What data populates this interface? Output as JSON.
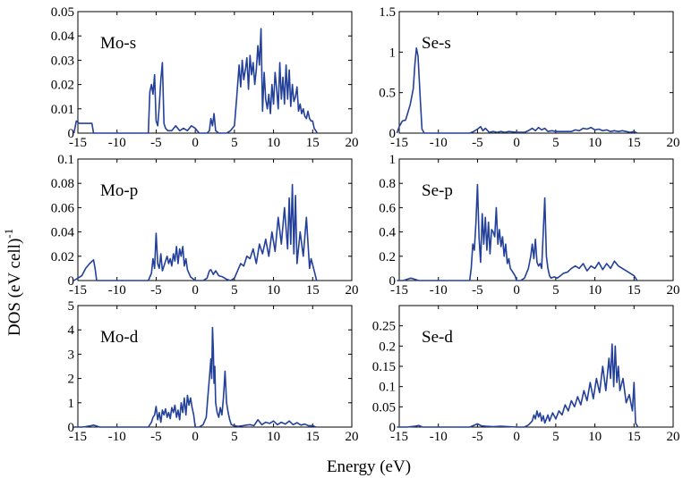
{
  "figure": {
    "ylabel": "DOS (eV cell)",
    "ylabel_sup": "-1",
    "xlabel": "Energy (eV)"
  },
  "chart_data": [
    {
      "type": "line",
      "label": "Mo-s",
      "xlim": [
        -15,
        20
      ],
      "ylim": [
        0,
        0.05
      ],
      "xticks": [
        "-15",
        "-10",
        "-5",
        "0",
        "5",
        "10",
        "15",
        "20"
      ],
      "yticks": [
        "0",
        "0.01",
        "0.02",
        "0.03",
        "0.04",
        "0.05"
      ],
      "ytick_values": [
        0,
        0.01,
        0.02,
        0.03,
        0.04,
        0.05
      ],
      "line_color": "#23409a",
      "x": [
        -15.5,
        -15.2,
        -14.8,
        -14.0,
        -13.2,
        -13.0,
        -12.8,
        -6.0,
        -5.8,
        -5.6,
        -5.4,
        -5.2,
        -5.0,
        -4.8,
        -4.6,
        -4.4,
        -4.2,
        -4.0,
        -3.8,
        -3.5,
        -3.0,
        -2.5,
        -2.0,
        -1.5,
        -1.0,
        -0.5,
        0.0,
        0.5,
        1.0,
        1.5,
        1.8,
        2.0,
        2.2,
        2.4,
        2.6,
        3.0,
        3.5,
        4.0,
        4.5,
        5.0,
        5.3,
        5.6,
        5.8,
        6.0,
        6.2,
        6.4,
        6.6,
        6.8,
        7.0,
        7.2,
        7.4,
        7.6,
        7.8,
        8.0,
        8.2,
        8.4,
        8.6,
        8.8,
        9.0,
        9.2,
        9.4,
        9.6,
        9.8,
        10.0,
        10.2,
        10.4,
        10.6,
        10.8,
        11.0,
        11.2,
        11.4,
        11.6,
        11.8,
        12.0,
        12.2,
        12.4,
        12.6,
        12.8,
        13.0,
        13.2,
        13.4,
        13.6,
        13.8,
        14.0,
        14.2,
        14.4,
        14.6,
        14.8,
        15.0,
        15.2,
        15.4,
        15.6
      ],
      "y": [
        0.0,
        0.005,
        0.004,
        0.004,
        0.004,
        0.0,
        0.0,
        0.0,
        0.017,
        0.02,
        0.016,
        0.024,
        0.005,
        0.003,
        0.011,
        0.022,
        0.029,
        0.004,
        0.002,
        0.001,
        0.001,
        0.003,
        0.001,
        0.002,
        0.001,
        0.003,
        0.002,
        0.0,
        0.0,
        0.0,
        0.001,
        0.006,
        0.003,
        0.008,
        0.001,
        0.0,
        0.0,
        0.0,
        0.001,
        0.003,
        0.015,
        0.028,
        0.019,
        0.03,
        0.022,
        0.026,
        0.031,
        0.018,
        0.032,
        0.024,
        0.029,
        0.02,
        0.026,
        0.036,
        0.028,
        0.043,
        0.009,
        0.025,
        0.014,
        0.01,
        0.016,
        0.008,
        0.02,
        0.012,
        0.025,
        0.018,
        0.01,
        0.029,
        0.014,
        0.023,
        0.012,
        0.028,
        0.014,
        0.026,
        0.011,
        0.02,
        0.013,
        0.015,
        0.019,
        0.009,
        0.012,
        0.008,
        0.01,
        0.007,
        0.006,
        0.009,
        0.006,
        0.005,
        0.005,
        0.002,
        0.001,
        0.0
      ]
    },
    {
      "type": "line",
      "label": "Se-s",
      "xlim": [
        -15,
        20
      ],
      "ylim": [
        0,
        1.5
      ],
      "xticks": [
        "-15",
        "-10",
        "-5",
        "0",
        "5",
        "10",
        "15",
        "20"
      ],
      "yticks": [
        "0",
        "0.5",
        "1",
        "1.5"
      ],
      "ytick_values": [
        0,
        0.5,
        1,
        1.5
      ],
      "line_color": "#23409a",
      "x": [
        -15.3,
        -15.0,
        -14.6,
        -14.2,
        -14.0,
        -13.6,
        -13.2,
        -13.0,
        -12.8,
        -12.6,
        -12.3,
        -12.1,
        -11.8,
        -6.0,
        -5.5,
        -5.0,
        -4.6,
        -4.3,
        -4.0,
        -3.5,
        -3.0,
        -2.5,
        -2.0,
        -1.5,
        -1.0,
        0.0,
        1.0,
        1.5,
        2.0,
        2.4,
        2.8,
        3.2,
        3.6,
        4.0,
        4.5,
        5.0,
        6.0,
        7.0,
        7.5,
        8.0,
        8.5,
        9.0,
        9.5,
        10.0,
        10.5,
        11.0,
        11.5,
        12.0,
        12.5,
        13.0,
        13.5,
        14.0,
        14.5,
        15.0,
        15.4
      ],
      "y": [
        0.0,
        0.08,
        0.15,
        0.16,
        0.22,
        0.35,
        0.55,
        0.85,
        1.05,
        0.95,
        0.4,
        0.05,
        0.0,
        0.0,
        0.02,
        0.05,
        0.08,
        0.03,
        0.06,
        0.01,
        0.02,
        0.01,
        0.02,
        0.01,
        0.02,
        0.01,
        0.01,
        0.03,
        0.06,
        0.03,
        0.07,
        0.04,
        0.06,
        0.02,
        0.03,
        0.02,
        0.02,
        0.02,
        0.04,
        0.03,
        0.06,
        0.05,
        0.07,
        0.04,
        0.05,
        0.03,
        0.04,
        0.02,
        0.03,
        0.02,
        0.03,
        0.02,
        0.01,
        0.02,
        0.0
      ]
    },
    {
      "type": "line",
      "label": "Mo-p",
      "xlim": [
        -15,
        20
      ],
      "ylim": [
        0,
        0.1
      ],
      "xticks": [
        "-15",
        "-10",
        "-5",
        "0",
        "5",
        "10",
        "15",
        "20"
      ],
      "yticks": [
        "0",
        "0.02",
        "0.04",
        "0.06",
        "0.08",
        "0.1"
      ],
      "ytick_values": [
        0,
        0.02,
        0.04,
        0.06,
        0.08,
        0.1
      ],
      "line_color": "#23409a",
      "x": [
        -15.5,
        -15.0,
        -14.5,
        -14.0,
        -13.5,
        -13.0,
        -12.8,
        -12.6,
        -6.0,
        -5.6,
        -5.4,
        -5.2,
        -5.0,
        -4.8,
        -4.6,
        -4.4,
        -4.2,
        -4.0,
        -3.8,
        -3.6,
        -3.4,
        -3.2,
        -3.0,
        -2.8,
        -2.6,
        -2.4,
        -2.2,
        -2.0,
        -1.8,
        -1.6,
        -1.4,
        -1.2,
        -1.0,
        -0.8,
        -0.6,
        -0.4,
        -0.2,
        0.0,
        0.5,
        1.0,
        1.5,
        1.8,
        2.0,
        2.3,
        2.6,
        3.0,
        3.5,
        4.0,
        4.5,
        5.0,
        5.4,
        5.8,
        6.2,
        6.6,
        7.0,
        7.4,
        7.8,
        8.2,
        8.6,
        9.0,
        9.4,
        9.8,
        10.2,
        10.6,
        11.0,
        11.4,
        11.8,
        12.0,
        12.2,
        12.4,
        12.6,
        12.8,
        13.0,
        13.4,
        13.8,
        14.2,
        14.6,
        14.8,
        15.0,
        15.2,
        15.5
      ],
      "y": [
        0.0,
        0.002,
        0.004,
        0.01,
        0.014,
        0.017,
        0.01,
        0.0,
        0.0,
        0.006,
        0.018,
        0.01,
        0.039,
        0.014,
        0.01,
        0.022,
        0.008,
        0.012,
        0.016,
        0.02,
        0.014,
        0.018,
        0.012,
        0.022,
        0.016,
        0.028,
        0.014,
        0.026,
        0.02,
        0.028,
        0.012,
        0.018,
        0.009,
        0.006,
        0.003,
        0.002,
        0.001,
        0.0,
        0.0,
        0.0,
        0.002,
        0.008,
        0.009,
        0.005,
        0.008,
        0.004,
        0.003,
        0.001,
        0.0,
        0.002,
        0.008,
        0.014,
        0.012,
        0.02,
        0.018,
        0.026,
        0.014,
        0.03,
        0.022,
        0.034,
        0.02,
        0.04,
        0.024,
        0.052,
        0.03,
        0.06,
        0.026,
        0.068,
        0.03,
        0.079,
        0.022,
        0.07,
        0.014,
        0.04,
        0.02,
        0.052,
        0.01,
        0.018,
        0.013,
        0.008,
        0.0
      ]
    },
    {
      "type": "line",
      "label": "Se-p",
      "xlim": [
        -15,
        20
      ],
      "ylim": [
        0,
        1
      ],
      "xticks": [
        "-15",
        "-10",
        "-5",
        "0",
        "5",
        "10",
        "15",
        "20"
      ],
      "yticks": [
        "0",
        "0.2",
        "0.4",
        "0.6",
        "0.8",
        "1"
      ],
      "ytick_values": [
        0,
        0.2,
        0.4,
        0.6,
        0.8,
        1
      ],
      "line_color": "#23409a",
      "x": [
        -15.3,
        -14.5,
        -14.0,
        -13.5,
        -13.0,
        -12.5,
        -6.0,
        -5.8,
        -5.6,
        -5.4,
        -5.2,
        -5.0,
        -4.8,
        -4.6,
        -4.4,
        -4.2,
        -4.0,
        -3.8,
        -3.6,
        -3.4,
        -3.2,
        -3.0,
        -2.8,
        -2.6,
        -2.4,
        -2.2,
        -2.0,
        -1.8,
        -1.6,
        -1.4,
        -1.2,
        -1.0,
        -0.8,
        -0.6,
        -0.4,
        -0.2,
        0.0,
        0.5,
        1.0,
        1.5,
        1.8,
        2.0,
        2.2,
        2.4,
        2.6,
        2.8,
        3.0,
        3.2,
        3.4,
        3.6,
        3.8,
        4.0,
        4.2,
        4.4,
        4.8,
        5.2,
        5.6,
        6.0,
        6.5,
        7.0,
        7.5,
        8.0,
        8.5,
        9.0,
        9.5,
        10.0,
        10.5,
        11.0,
        11.5,
        12.0,
        12.5,
        13.0,
        13.5,
        14.0,
        14.5,
        15.0,
        15.4
      ],
      "y": [
        0.0,
        0.0,
        0.01,
        0.02,
        0.01,
        0.0,
        0.0,
        0.1,
        0.3,
        0.25,
        0.48,
        0.79,
        0.35,
        0.15,
        0.55,
        0.3,
        0.52,
        0.25,
        0.48,
        0.22,
        0.42,
        0.4,
        0.36,
        0.6,
        0.3,
        0.42,
        0.28,
        0.36,
        0.2,
        0.3,
        0.14,
        0.18,
        0.1,
        0.08,
        0.06,
        0.04,
        0.0,
        0.0,
        0.02,
        0.1,
        0.2,
        0.3,
        0.18,
        0.34,
        0.15,
        0.12,
        0.14,
        0.1,
        0.4,
        0.68,
        0.2,
        0.1,
        0.04,
        0.02,
        0.03,
        0.02,
        0.04,
        0.06,
        0.07,
        0.1,
        0.12,
        0.1,
        0.14,
        0.08,
        0.12,
        0.1,
        0.15,
        0.09,
        0.14,
        0.1,
        0.16,
        0.12,
        0.1,
        0.08,
        0.06,
        0.04,
        0.0
      ]
    },
    {
      "type": "line",
      "label": "Mo-d",
      "xlim": [
        -15,
        20
      ],
      "ylim": [
        0,
        5
      ],
      "xticks": [
        "-15",
        "-10",
        "-5",
        "0",
        "5",
        "10",
        "15",
        "20"
      ],
      "yticks": [
        "0",
        "1",
        "2",
        "3",
        "4",
        "5"
      ],
      "ytick_values": [
        0,
        1,
        2,
        3,
        4,
        5
      ],
      "line_color": "#23409a",
      "x": [
        -15.5,
        -14.5,
        -14.0,
        -13.4,
        -13.0,
        -12.6,
        -12.2,
        -6.0,
        -5.6,
        -5.4,
        -5.2,
        -5.0,
        -4.8,
        -4.6,
        -4.4,
        -4.2,
        -4.0,
        -3.8,
        -3.6,
        -3.4,
        -3.2,
        -3.0,
        -2.8,
        -2.6,
        -2.4,
        -2.2,
        -2.0,
        -1.8,
        -1.6,
        -1.4,
        -1.2,
        -1.0,
        -0.8,
        -0.6,
        -0.4,
        -0.2,
        0.0,
        0.5,
        1.0,
        1.4,
        1.6,
        1.8,
        2.0,
        2.1,
        2.2,
        2.3,
        2.4,
        2.5,
        2.6,
        2.8,
        3.0,
        3.2,
        3.4,
        3.6,
        3.8,
        4.0,
        4.2,
        4.4,
        4.6,
        5.0,
        5.5,
        6.0,
        6.5,
        7.0,
        7.5,
        8.0,
        8.5,
        9.0,
        9.5,
        10.0,
        10.5,
        11.0,
        11.5,
        12.0,
        12.5,
        13.0,
        13.5,
        14.0,
        14.5,
        15.0,
        15.4
      ],
      "y": [
        0.0,
        0.0,
        0.02,
        0.05,
        0.08,
        0.04,
        0.0,
        0.0,
        0.2,
        0.4,
        0.5,
        0.85,
        0.3,
        0.6,
        0.2,
        0.7,
        0.5,
        0.75,
        0.4,
        0.6,
        0.35,
        0.8,
        0.6,
        0.9,
        0.4,
        0.7,
        0.3,
        1.0,
        0.6,
        1.2,
        0.5,
        1.3,
        0.9,
        1.2,
        0.8,
        0.5,
        0.0,
        0.0,
        0.1,
        0.4,
        1.2,
        2.0,
        2.8,
        2.0,
        4.1,
        3.2,
        1.8,
        2.5,
        1.0,
        0.6,
        0.4,
        0.8,
        0.5,
        1.2,
        2.3,
        1.0,
        0.6,
        0.3,
        0.1,
        0.05,
        0.03,
        0.05,
        0.08,
        0.1,
        0.06,
        0.3,
        0.1,
        0.2,
        0.15,
        0.25,
        0.1,
        0.2,
        0.12,
        0.25,
        0.1,
        0.18,
        0.08,
        0.12,
        0.05,
        0.06,
        0.0
      ]
    },
    {
      "type": "line",
      "label": "Se-d",
      "xlim": [
        -15,
        20
      ],
      "ylim": [
        0,
        0.3
      ],
      "xticks": [
        "-15",
        "-10",
        "-5",
        "0",
        "5",
        "10",
        "15",
        "20"
      ],
      "yticks": [
        "0",
        "0.05",
        "0.1",
        "0.15",
        "0.2",
        "0.25"
      ],
      "ytick_values": [
        0,
        0.05,
        0.1,
        0.15,
        0.2,
        0.25
      ],
      "line_color": "#23409a",
      "x": [
        -15.3,
        -14.0,
        -13.0,
        -12.5,
        -12.0,
        -6.0,
        -5.5,
        -5.0,
        -4.5,
        -4.0,
        -3.0,
        -2.0,
        -1.0,
        0.0,
        1.0,
        1.5,
        2.0,
        2.2,
        2.4,
        2.6,
        2.8,
        3.0,
        3.2,
        3.4,
        3.6,
        3.8,
        4.0,
        4.2,
        4.4,
        4.6,
        5.0,
        5.4,
        5.8,
        6.2,
        6.6,
        7.0,
        7.4,
        7.8,
        8.2,
        8.6,
        9.0,
        9.4,
        9.8,
        10.2,
        10.6,
        11.0,
        11.4,
        11.8,
        12.0,
        12.2,
        12.4,
        12.6,
        12.8,
        13.0,
        13.2,
        13.6,
        14.0,
        14.4,
        14.8,
        15.0,
        15.2,
        15.5
      ],
      "y": [
        0.0,
        0.0,
        0.002,
        0.004,
        0.0,
        0.0,
        0.004,
        0.008,
        0.003,
        0.002,
        0.001,
        0.002,
        0.001,
        0.0,
        0.0,
        0.005,
        0.015,
        0.03,
        0.02,
        0.04,
        0.025,
        0.035,
        0.015,
        0.028,
        0.01,
        0.02,
        0.03,
        0.015,
        0.025,
        0.035,
        0.02,
        0.04,
        0.03,
        0.055,
        0.04,
        0.065,
        0.05,
        0.075,
        0.055,
        0.09,
        0.065,
        0.11,
        0.07,
        0.12,
        0.085,
        0.15,
        0.09,
        0.17,
        0.12,
        0.205,
        0.1,
        0.2,
        0.11,
        0.15,
        0.09,
        0.12,
        0.06,
        0.08,
        0.04,
        0.11,
        0.01,
        0.0
      ]
    }
  ]
}
